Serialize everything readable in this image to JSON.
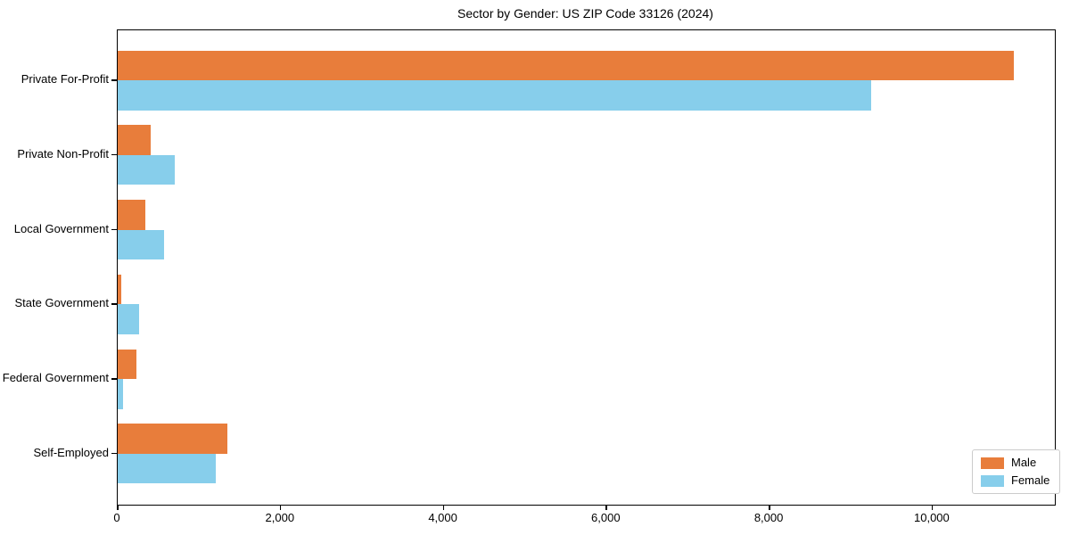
{
  "title": "Sector by Gender: US ZIP Code 33126 (2024)",
  "colors": {
    "male": "#e87d3b",
    "female": "#87ceeb",
    "axis": "#000000",
    "legend_border": "#cccccc",
    "background": "#ffffff"
  },
  "chart_data": {
    "type": "bar",
    "orientation": "horizontal",
    "title": "Sector by Gender: US ZIP Code 33126 (2024)",
    "categories": [
      "Private For-Profit",
      "Private Non-Profit",
      "Local Government",
      "State Government",
      "Federal Government",
      "Self-Employed"
    ],
    "series": [
      {
        "name": "Male",
        "color": "#e87d3b",
        "values": [
          11000,
          400,
          340,
          40,
          230,
          1350
        ]
      },
      {
        "name": "Female",
        "color": "#87ceeb",
        "values": [
          9250,
          700,
          570,
          260,
          65,
          1200
        ]
      }
    ],
    "xlabel": "",
    "ylabel": "",
    "xlim": [
      0,
      11500
    ],
    "x_ticks": [
      0,
      2000,
      4000,
      6000,
      8000,
      10000
    ],
    "x_tick_labels": [
      "0",
      "2,000",
      "4,000",
      "6,000",
      "8,000",
      "10,000"
    ],
    "grid": false,
    "legend_position": "lower right",
    "legend_labels": [
      "Male",
      "Female"
    ]
  }
}
